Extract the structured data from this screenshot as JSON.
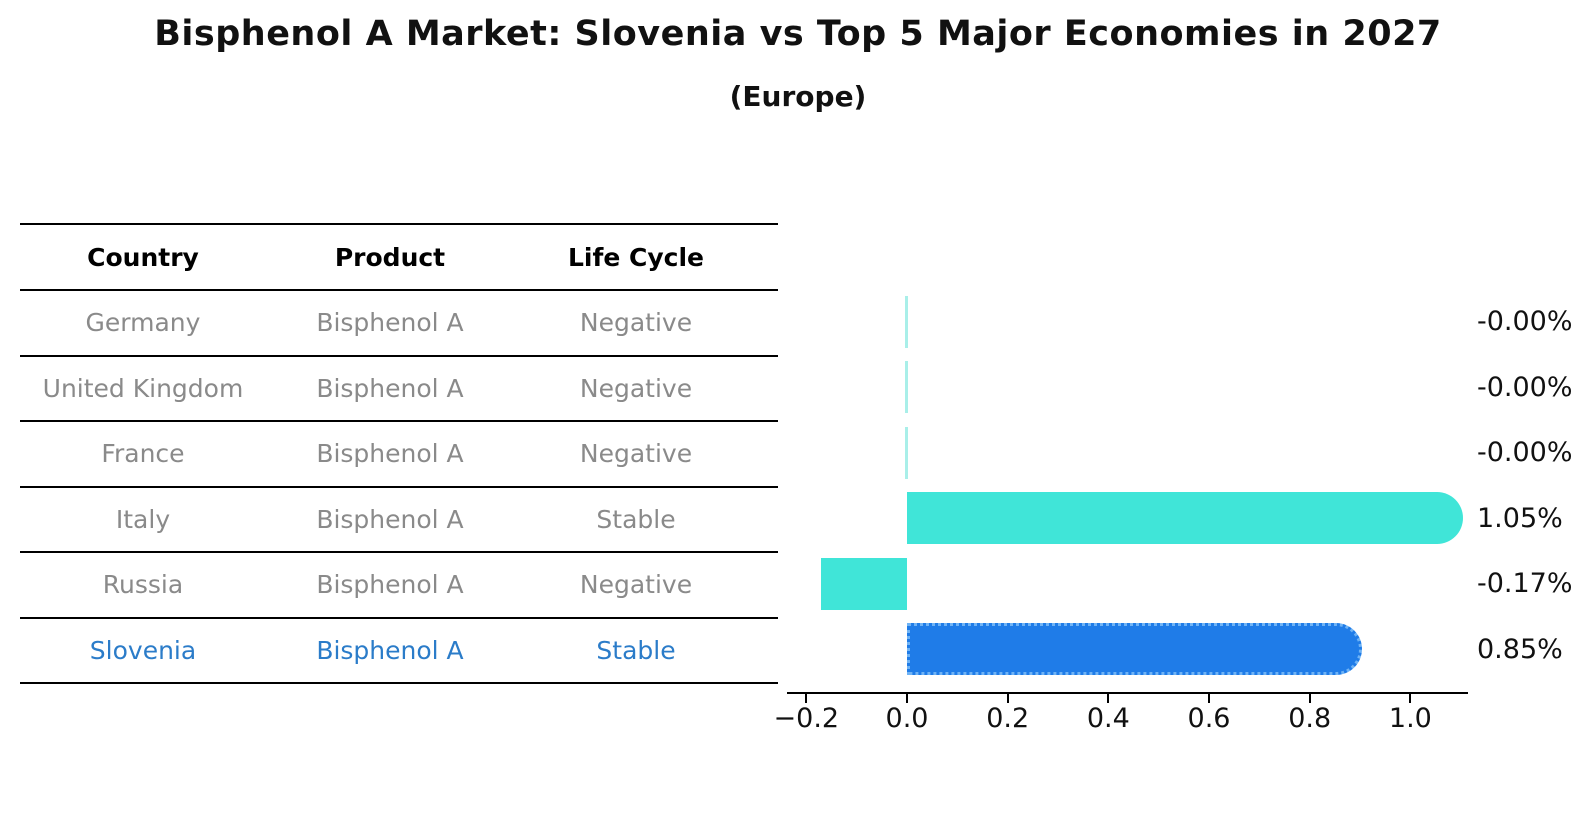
{
  "title": "Bisphenol A Market: Slovenia vs Top 5 Major Economies in 2027",
  "subtitle": "(Europe)",
  "table": {
    "headers": [
      "Country",
      "Product",
      "Life Cycle"
    ],
    "rows": [
      {
        "country": "Germany",
        "product": "Bisphenol A",
        "life_cycle": "Negative",
        "highlight": false
      },
      {
        "country": "United Kingdom",
        "product": "Bisphenol A",
        "life_cycle": "Negative",
        "highlight": false
      },
      {
        "country": "France",
        "product": "Bisphenol A",
        "life_cycle": "Negative",
        "highlight": false
      },
      {
        "country": "Italy",
        "product": "Bisphenol A",
        "life_cycle": "Stable",
        "highlight": false
      },
      {
        "country": "Russia",
        "product": "Bisphenol A",
        "life_cycle": "Negative",
        "highlight": false
      },
      {
        "country": "Slovenia",
        "product": "Bisphenol A",
        "life_cycle": "Stable",
        "highlight": true
      }
    ]
  },
  "chart_data": {
    "type": "bar",
    "orientation": "horizontal",
    "title": "Bisphenol A Market: Slovenia vs Top 5 Major Economies in 2027",
    "subtitle": "(Europe)",
    "categories": [
      "Germany",
      "United Kingdom",
      "France",
      "Italy",
      "Russia",
      "Slovenia"
    ],
    "values": [
      -0.0,
      -0.0,
      -0.0,
      1.05,
      -0.17,
      0.85
    ],
    "value_labels": [
      "-0.00%",
      "-0.00%",
      "-0.00%",
      "1.05%",
      "-0.17%",
      "0.85%"
    ],
    "highlight_category": "Slovenia",
    "x_ticks": [
      -0.2,
      0.0,
      0.2,
      0.4,
      0.6,
      0.8,
      1.0
    ],
    "x_tick_labels": [
      "−0.2",
      "0.0",
      "0.2",
      "0.4",
      "0.6",
      "0.8",
      "1.0"
    ],
    "xlim": [
      -0.24,
      1.12
    ],
    "grid": false,
    "legend": false
  },
  "colors": {
    "bar_cyan": "#40e5d8",
    "bar_blue": "#1f7ce8",
    "bar_blue_edge": "#6fb3f5",
    "zero_sliver": "#a9efe9",
    "highlight_text": "#2b7cc9",
    "row_text": "#8a8a8a",
    "header_text": "#000000",
    "axis_line": "#000000"
  }
}
